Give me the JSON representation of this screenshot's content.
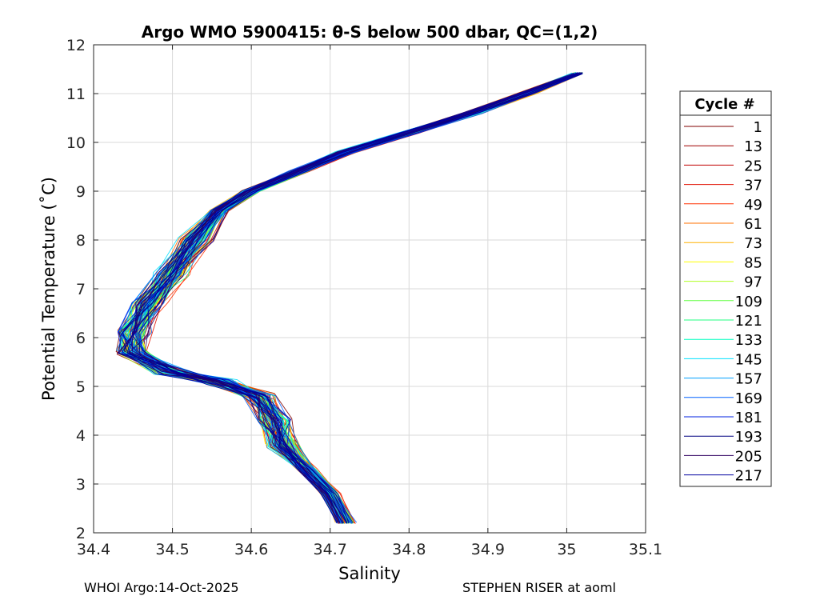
{
  "chart_data": {
    "type": "line",
    "title": "Argo WMO 5900415: θ-S below 500 dbar,  QC=(1,2)",
    "xlabel": "Salinity",
    "ylabel": "Potential Temperature (˚C)",
    "xlim": [
      34.4,
      35.1
    ],
    "ylim": [
      2,
      12
    ],
    "xticks": [
      "34.4",
      "34.5",
      "34.6",
      "34.7",
      "34.8",
      "34.9",
      "35",
      "35.1"
    ],
    "yticks": [
      "2",
      "3",
      "4",
      "5",
      "6",
      "7",
      "8",
      "9",
      "10",
      "11",
      "12"
    ],
    "grid": true,
    "legend_title": "Cycle #",
    "legend_position": "outside-right",
    "series": [
      {
        "name": "1",
        "color": "#800000"
      },
      {
        "name": "13",
        "color": "#a00000"
      },
      {
        "name": "25",
        "color": "#c00000"
      },
      {
        "name": "37",
        "color": "#e01000"
      },
      {
        "name": "49",
        "color": "#ff3000"
      },
      {
        "name": "61",
        "color": "#ff7000"
      },
      {
        "name": "73",
        "color": "#ffb000"
      },
      {
        "name": "85",
        "color": "#ffff00"
      },
      {
        "name": "97",
        "color": "#b0ff20"
      },
      {
        "name": "109",
        "color": "#60ff40"
      },
      {
        "name": "121",
        "color": "#20ff80"
      },
      {
        "name": "133",
        "color": "#00ffc0"
      },
      {
        "name": "145",
        "color": "#00e0ff"
      },
      {
        "name": "157",
        "color": "#00a0ff"
      },
      {
        "name": "169",
        "color": "#0060ff"
      },
      {
        "name": "181",
        "color": "#0020e0"
      },
      {
        "name": "193",
        "color": "#000080"
      },
      {
        "name": "205",
        "color": "#300060"
      },
      {
        "name": "217",
        "color": "#0000a0"
      }
    ],
    "profile_shape": [
      [
        35.02,
        11.42
      ],
      [
        34.95,
        11.0
      ],
      [
        34.88,
        10.6
      ],
      [
        34.8,
        10.2
      ],
      [
        34.72,
        9.8
      ],
      [
        34.66,
        9.4
      ],
      [
        34.6,
        9.0
      ],
      [
        34.56,
        8.6
      ],
      [
        34.53,
        8.0
      ],
      [
        34.5,
        7.3
      ],
      [
        34.47,
        6.7
      ],
      [
        34.45,
        6.1
      ],
      [
        34.45,
        5.7
      ],
      [
        34.5,
        5.3
      ],
      [
        34.56,
        5.1
      ],
      [
        34.61,
        4.8
      ],
      [
        34.63,
        4.3
      ],
      [
        34.64,
        3.8
      ],
      [
        34.67,
        3.3
      ],
      [
        34.7,
        2.8
      ],
      [
        34.72,
        2.2
      ]
    ]
  },
  "footer": {
    "left": "WHOI Argo:14-Oct-2025",
    "right": "STEPHEN RISER at aoml"
  }
}
